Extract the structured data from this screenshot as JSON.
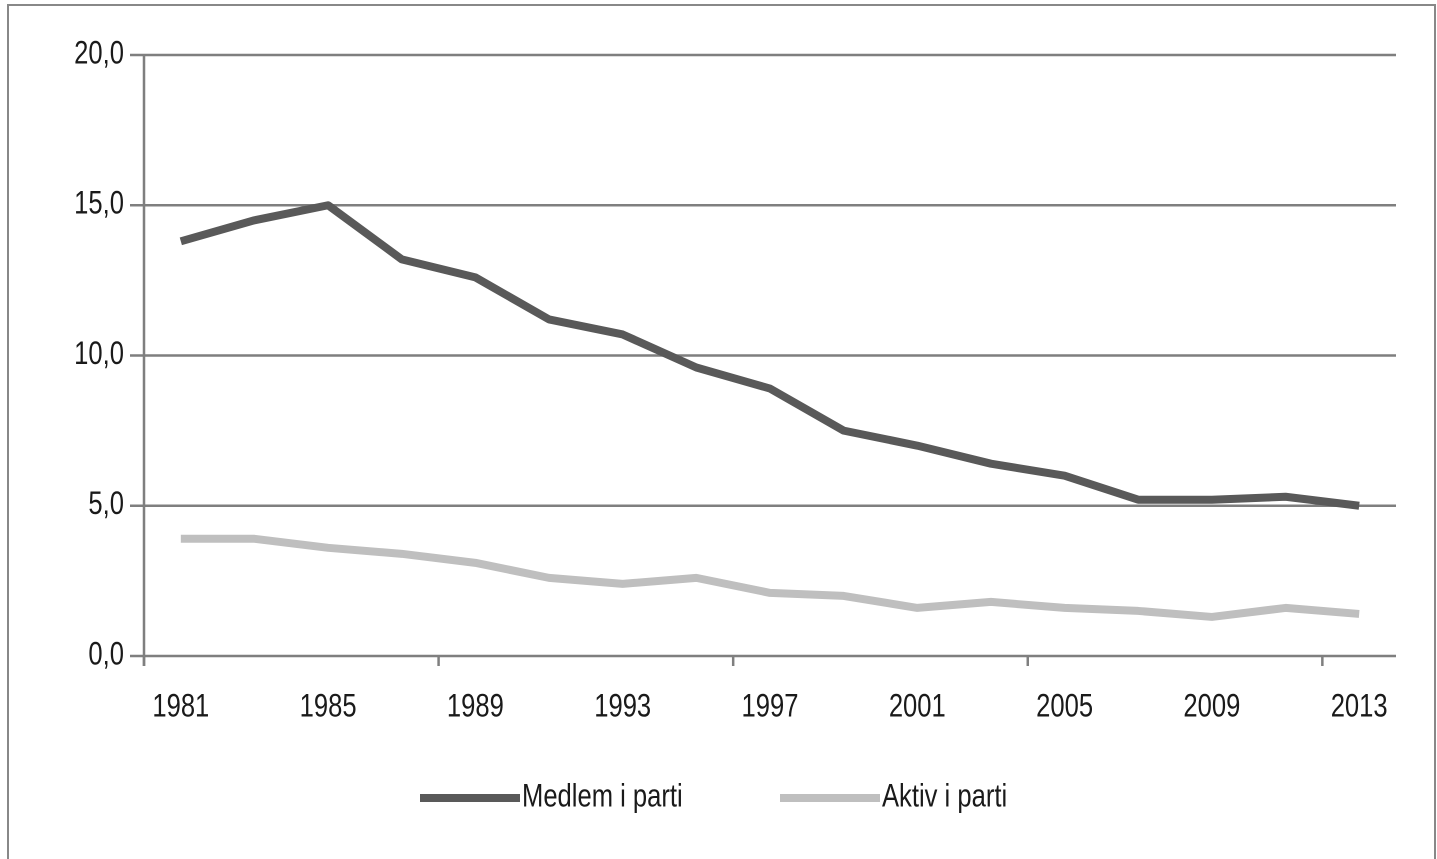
{
  "chart_data": {
    "type": "line",
    "categories": [
      "1981",
      null,
      "1985",
      null,
      "1989",
      null,
      "1993",
      null,
      "1997",
      null,
      "2001",
      null,
      "2005",
      null,
      "2009",
      null,
      "2013"
    ],
    "series": [
      {
        "name": "Medlem i parti",
        "color": "#595959",
        "values": [
          13.8,
          14.5,
          15.0,
          13.2,
          12.6,
          11.2,
          10.7,
          9.6,
          8.9,
          7.5,
          7.0,
          6.4,
          6.0,
          5.2,
          5.2,
          5.3,
          5.0
        ]
      },
      {
        "name": "Aktiv i parti",
        "color": "#bfbfbf",
        "values": [
          3.9,
          3.9,
          3.6,
          3.4,
          3.1,
          2.6,
          2.4,
          2.6,
          2.1,
          2.0,
          1.6,
          1.8,
          1.6,
          1.5,
          1.3,
          1.6,
          1.4
        ]
      }
    ],
    "ylim": [
      0,
      20
    ],
    "yticks": [
      {
        "value": 0,
        "label": "0,0"
      },
      {
        "value": 5,
        "label": "5,0"
      },
      {
        "value": 10,
        "label": "10,0"
      },
      {
        "value": 15,
        "label": "15,0"
      },
      {
        "value": 20,
        "label": "20,0"
      }
    ],
    "grid": true,
    "legend": "bottom"
  }
}
